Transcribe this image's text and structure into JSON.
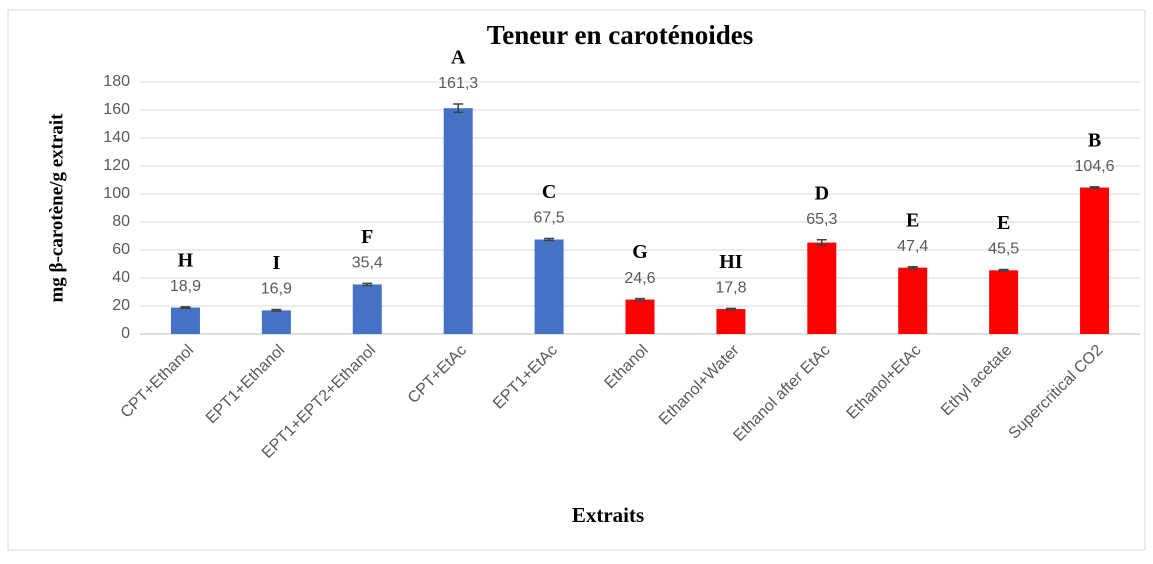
{
  "chart_data": {
    "type": "bar",
    "title": "Teneur en caroténoides",
    "ylabel": "mg β-carotène/g extrait",
    "xlabel": "Extraits",
    "categories": [
      "CPT+Ethanol",
      "EPT1+Ethanol",
      "EPT1+EPT2+Ethanol",
      "CPT+EtAc",
      "EPT1+EtAc",
      "Ethanol",
      "Ethanol+Water",
      "Ethanol after EtAc",
      "Ethanol+EtAc",
      "Ethyl acetate",
      "Supercritical CO2"
    ],
    "values": [
      18.9,
      16.9,
      35.4,
      161.3,
      67.5,
      24.6,
      17.8,
      65.3,
      47.4,
      45.5,
      104.6
    ],
    "value_labels": [
      "18,9",
      "16,9",
      "35,4",
      "161,3",
      "67,5",
      "24,6",
      "17,8",
      "65,3",
      "47,4",
      "45,5",
      "104,6"
    ],
    "errors": [
      0.5,
      0.6,
      0.8,
      3,
      0.7,
      0.7,
      0.5,
      2,
      0.6,
      0.6,
      0.5
    ],
    "annotations": [
      "H",
      "I",
      "F",
      "A",
      "C",
      "G",
      "HI",
      "D",
      "E",
      "E",
      "B"
    ],
    "colors": [
      "#4472c4",
      "#4472c4",
      "#4472c4",
      "#4472c4",
      "#4472c4",
      "#ff0000",
      "#ff0000",
      "#ff0000",
      "#ff0000",
      "#ff0000",
      "#ff0000"
    ],
    "ylim": [
      0,
      180
    ],
    "yticks": [
      0,
      20,
      40,
      60,
      80,
      100,
      120,
      140,
      160,
      180
    ],
    "grid": true
  }
}
